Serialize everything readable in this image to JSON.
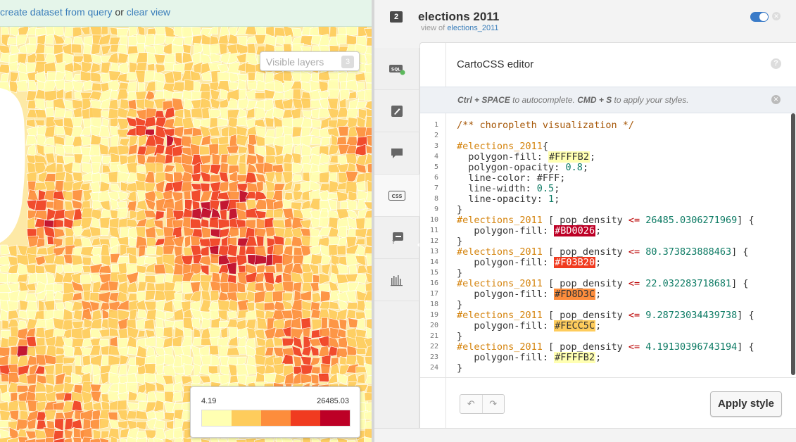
{
  "query_bar": {
    "link_create": "create dataset from query",
    "or": "or",
    "link_clear": "clear view"
  },
  "map": {
    "visible_layers_label": "Visible layers",
    "visible_layers_count": "3",
    "legend": {
      "min": "4.19",
      "max": "26485.03",
      "colors": [
        "#FFFFB2",
        "#FECC5C",
        "#FD8D3C",
        "#F03B20",
        "#BD0026"
      ]
    }
  },
  "layer": {
    "number": "2",
    "title": "elections 2011",
    "view_of_label": "view of",
    "source": "elections_2011",
    "visible": true,
    "accent_color": "#3a7bc8"
  },
  "tabs": [
    {
      "name": "sql-icon",
      "active": false
    },
    {
      "name": "wizard-icon",
      "active": false
    },
    {
      "name": "infowindow-icon",
      "active": false
    },
    {
      "name": "css-icon",
      "active": true
    },
    {
      "name": "legend-icon",
      "active": false
    },
    {
      "name": "filters-icon",
      "active": false
    }
  ],
  "editor": {
    "title": "CartoCSS editor",
    "help": "?",
    "hint_parts": [
      "Ctrl + SPACE",
      " to autocomplete. ",
      "CMD + S",
      " to apply your styles."
    ],
    "apply_label": "Apply style",
    "undo_icon": "undo-icon",
    "redo_icon": "redo-icon",
    "lines": [
      [
        [
          "cm",
          "/** choropleth visualization */"
        ]
      ],
      [],
      [
        [
          "sel",
          "#elections_2011"
        ],
        [
          "prop",
          "{"
        ]
      ],
      [
        [
          "prop",
          "  polygon-fill: "
        ],
        [
          "hl:#FFFFB2",
          "#FFFFB2"
        ],
        [
          "prop",
          ";"
        ]
      ],
      [
        [
          "prop",
          "  polygon-opacity: "
        ],
        [
          "num",
          "0.8"
        ],
        [
          "prop",
          ";"
        ]
      ],
      [
        [
          "prop",
          "  line-color: #FFF;"
        ]
      ],
      [
        [
          "prop",
          "  line-width: "
        ],
        [
          "num",
          "0.5"
        ],
        [
          "prop",
          ";"
        ]
      ],
      [
        [
          "prop",
          "  line-opacity: "
        ],
        [
          "num",
          "1"
        ],
        [
          "prop",
          ";"
        ]
      ],
      [
        [
          "prop",
          "}"
        ]
      ],
      [
        [
          "sel",
          "#elections_2011"
        ],
        [
          "prop",
          " [ pop_density "
        ],
        [
          "op",
          "<="
        ],
        [
          "num",
          " 26485.0306271969"
        ],
        [
          "prop",
          "] {"
        ]
      ],
      [
        [
          "prop",
          "   polygon-fill: "
        ],
        [
          "hl:#BD0026",
          "#BD0026"
        ],
        [
          "prop",
          ";"
        ]
      ],
      [
        [
          "prop",
          "}"
        ]
      ],
      [
        [
          "sel",
          "#elections_2011"
        ],
        [
          "prop",
          " [ pop_density "
        ],
        [
          "op",
          "<="
        ],
        [
          "num",
          " 80.373823888463"
        ],
        [
          "prop",
          "] {"
        ]
      ],
      [
        [
          "prop",
          "   polygon-fill: "
        ],
        [
          "hl:#F03B20",
          "#F03B20"
        ],
        [
          "prop",
          ";"
        ]
      ],
      [
        [
          "prop",
          "}"
        ]
      ],
      [
        [
          "sel",
          "#elections_2011"
        ],
        [
          "prop",
          " [ pop_density "
        ],
        [
          "op",
          "<="
        ],
        [
          "num",
          " 22.032283718681"
        ],
        [
          "prop",
          "] {"
        ]
      ],
      [
        [
          "prop",
          "   polygon-fill: "
        ],
        [
          "hl:#FD8D3C",
          "#FD8D3C"
        ],
        [
          "prop",
          ";"
        ]
      ],
      [
        [
          "prop",
          "}"
        ]
      ],
      [
        [
          "sel",
          "#elections_2011"
        ],
        [
          "prop",
          " [ pop_density "
        ],
        [
          "op",
          "<="
        ],
        [
          "num",
          " 9.28723034439738"
        ],
        [
          "prop",
          "] {"
        ]
      ],
      [
        [
          "prop",
          "   polygon-fill: "
        ],
        [
          "hl:#FECC5C",
          "#FECC5C"
        ],
        [
          "prop",
          ";"
        ]
      ],
      [
        [
          "prop",
          "}"
        ]
      ],
      [
        [
          "sel",
          "#elections_2011"
        ],
        [
          "prop",
          " [ pop_density "
        ],
        [
          "op",
          "<="
        ],
        [
          "num",
          " 4.19130396743194"
        ],
        [
          "prop",
          "] {"
        ]
      ],
      [
        [
          "prop",
          "   polygon-fill: "
        ],
        [
          "hl:#FFFFB2",
          "#FFFFB2"
        ],
        [
          "prop",
          ";"
        ]
      ],
      [
        [
          "prop",
          "}"
        ]
      ]
    ]
  }
}
